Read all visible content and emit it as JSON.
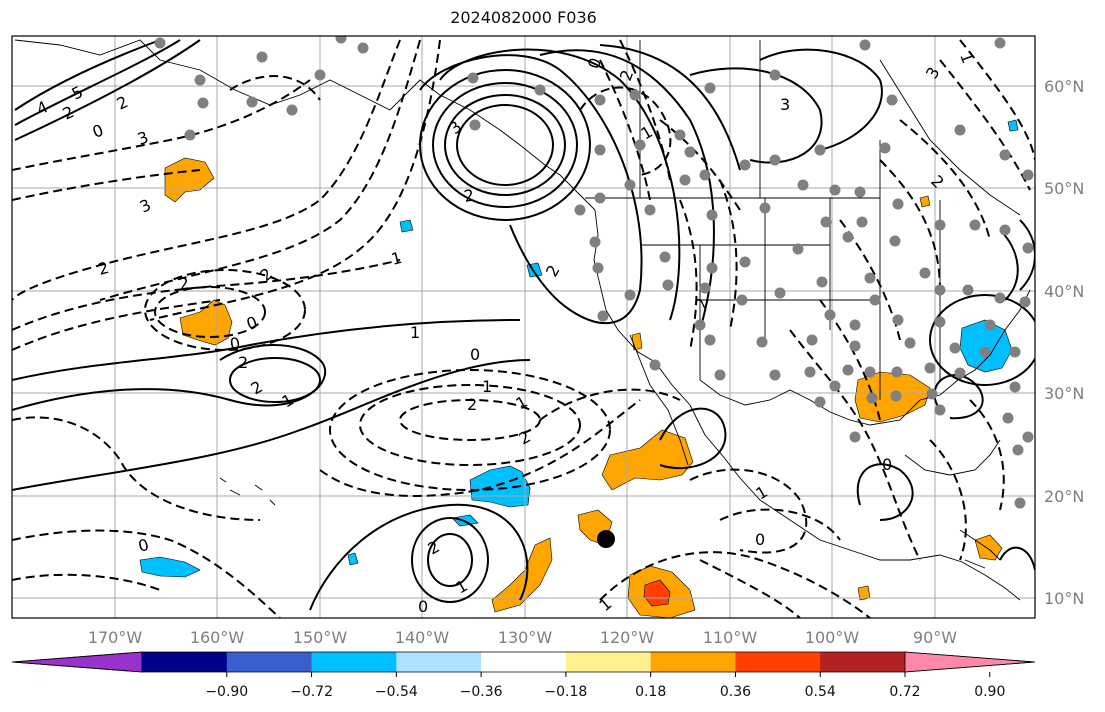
{
  "title": "2024082000 F036",
  "lat_labels": [
    "60°N",
    "50°N",
    "40°N",
    "30°N",
    "20°N",
    "10°N"
  ],
  "lon_labels": [
    "170°W",
    "160°W",
    "150°W",
    "140°W",
    "130°W",
    "120°W",
    "110°W",
    "100°W",
    "90°W"
  ],
  "colorbar": {
    "ticks": [
      "−0.90",
      "−0.72",
      "−0.54",
      "−0.36",
      "−0.18",
      "0.18",
      "0.36",
      "0.54",
      "0.72",
      "0.90"
    ],
    "colors": [
      "#9932cc",
      "#00008b",
      "#3a5fcd",
      "#00bfff",
      "#b0e2ff",
      "#ffffff",
      "#fff08f",
      "#ffa500",
      "#ff4000",
      "#b22222",
      "#ff88aa"
    ]
  },
  "contour_labels": [
    "4",
    "5",
    "3",
    "2",
    "0",
    "2",
    "3",
    "2",
    "1",
    "0",
    "1",
    "0",
    "2",
    "1",
    "3",
    "2",
    "3",
    "2",
    "2",
    "0",
    "2",
    "2",
    "1",
    "2",
    "1",
    "0",
    "1",
    "0",
    "1",
    "2",
    "2",
    "1",
    "0",
    "0",
    "2",
    "1",
    "3",
    "1",
    "0",
    "2",
    "2"
  ],
  "colors": {
    "warm": "#ffa500",
    "hot": "#ff4000",
    "cold": "#00bfff",
    "station": "#808080",
    "grid": "#aaaaaa"
  }
}
